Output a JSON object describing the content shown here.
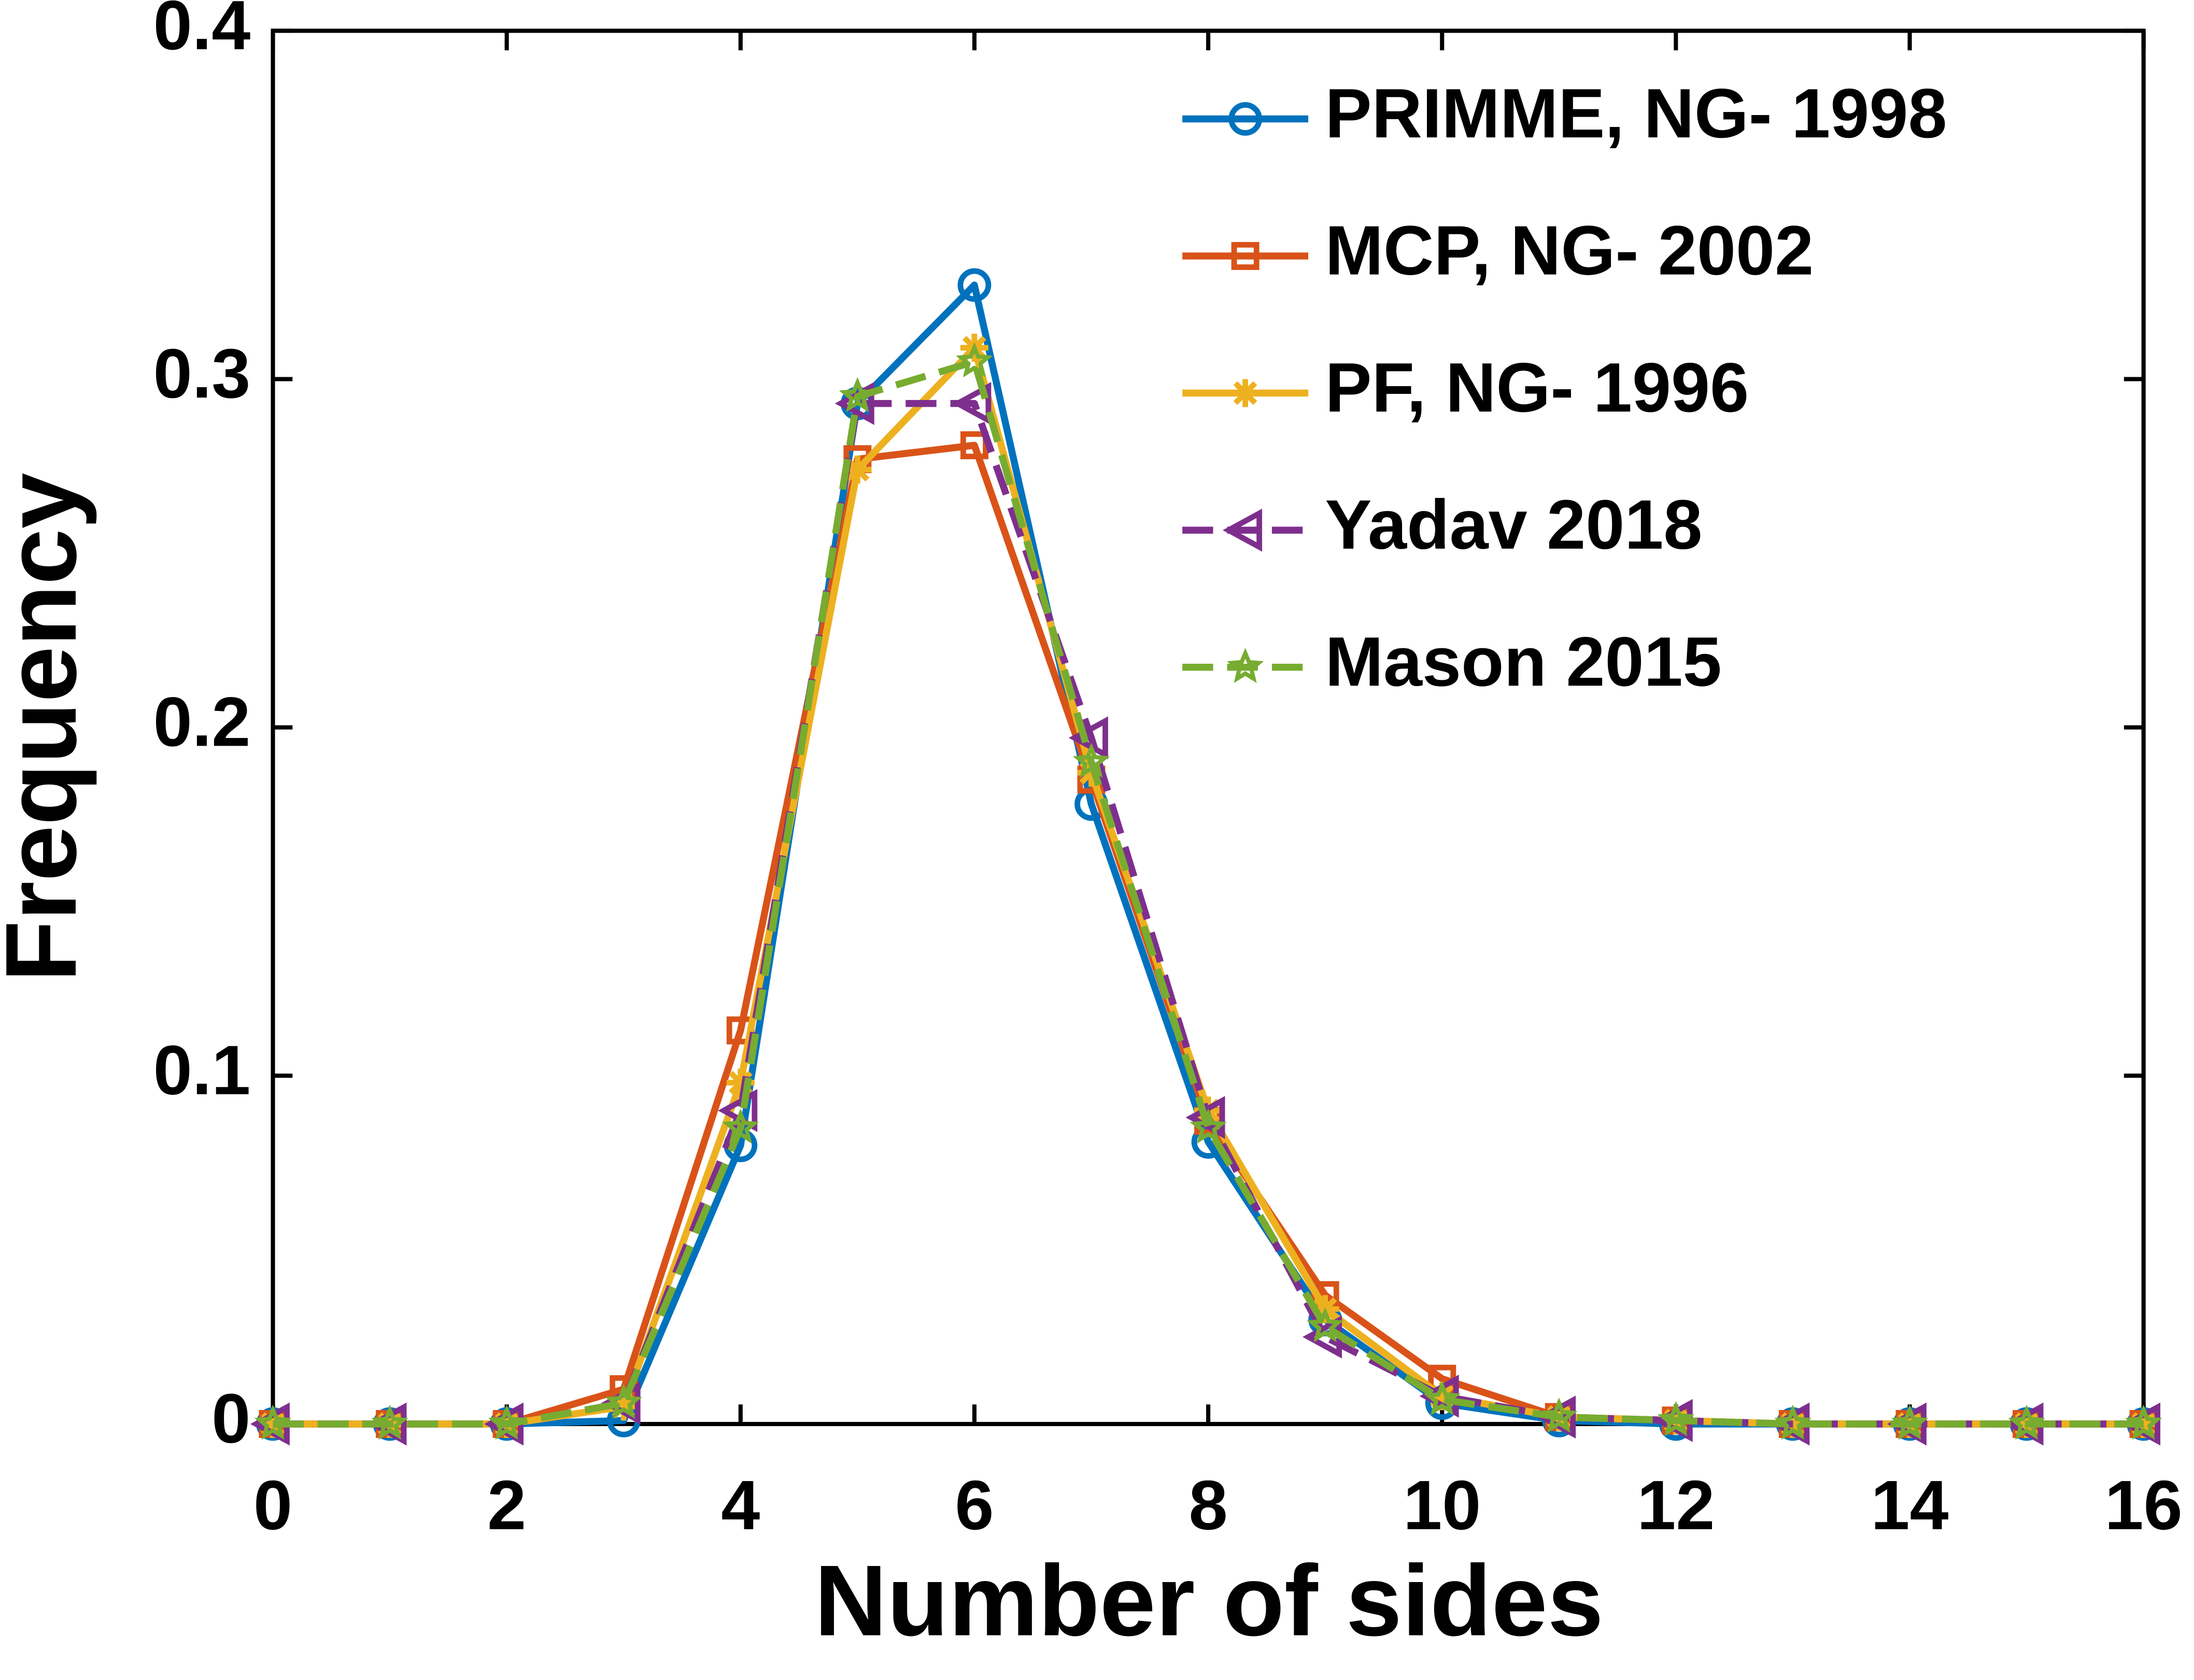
{
  "chart_data": {
    "type": "line",
    "xlabel": "Number of sides",
    "ylabel": "Frequency",
    "x": [
      0,
      1,
      2,
      3,
      4,
      5,
      6,
      7,
      8,
      9,
      10,
      11,
      12,
      13,
      14,
      15,
      16
    ],
    "xlim": [
      0,
      16
    ],
    "xticks": [
      0,
      2,
      4,
      6,
      8,
      10,
      12,
      14,
      16
    ],
    "ylim": [
      0,
      0.4
    ],
    "yticks": [
      0,
      0.1,
      0.2,
      0.3,
      0.4
    ],
    "legend": "upper right",
    "series": [
      {
        "name": "PRIMME, NG- 1998",
        "color": "#0072BD",
        "marker": "circle",
        "linestyle": "solid",
        "values": [
          0,
          0,
          0,
          0.001,
          0.08,
          0.293,
          0.327,
          0.178,
          0.081,
          0.03,
          0.006,
          0.001,
          0,
          0,
          0,
          0,
          0
        ]
      },
      {
        "name": "MCP, NG- 2002",
        "color": "#D95319",
        "marker": "square",
        "linestyle": "solid",
        "values": [
          0,
          0,
          0,
          0.01,
          0.113,
          0.277,
          0.281,
          0.185,
          0.087,
          0.037,
          0.013,
          0.002,
          0.001,
          0,
          0,
          0,
          0
        ]
      },
      {
        "name": "PF, NG- 1996",
        "color": "#EDB120",
        "marker": "asterisk",
        "linestyle": "solid",
        "values": [
          0,
          0,
          0,
          0.005,
          0.098,
          0.274,
          0.309,
          0.187,
          0.09,
          0.033,
          0.008,
          0.002,
          0.001,
          0,
          0,
          0,
          0
        ]
      },
      {
        "name": "Yadav 2018",
        "color": "#7E2F8E",
        "marker": "triangle-left",
        "linestyle": "dashed",
        "values": [
          0,
          0,
          0,
          0.006,
          0.09,
          0.293,
          0.293,
          0.197,
          0.088,
          0.025,
          0.008,
          0.002,
          0.001,
          0,
          0,
          0,
          0
        ]
      },
      {
        "name": "Mason 2015",
        "color": "#77AC30",
        "marker": "star",
        "linestyle": "dashed",
        "values": [
          0,
          0,
          0,
          0.006,
          0.085,
          0.295,
          0.305,
          0.19,
          0.085,
          0.028,
          0.007,
          0.002,
          0.001,
          0,
          0,
          0,
          0
        ]
      }
    ]
  }
}
